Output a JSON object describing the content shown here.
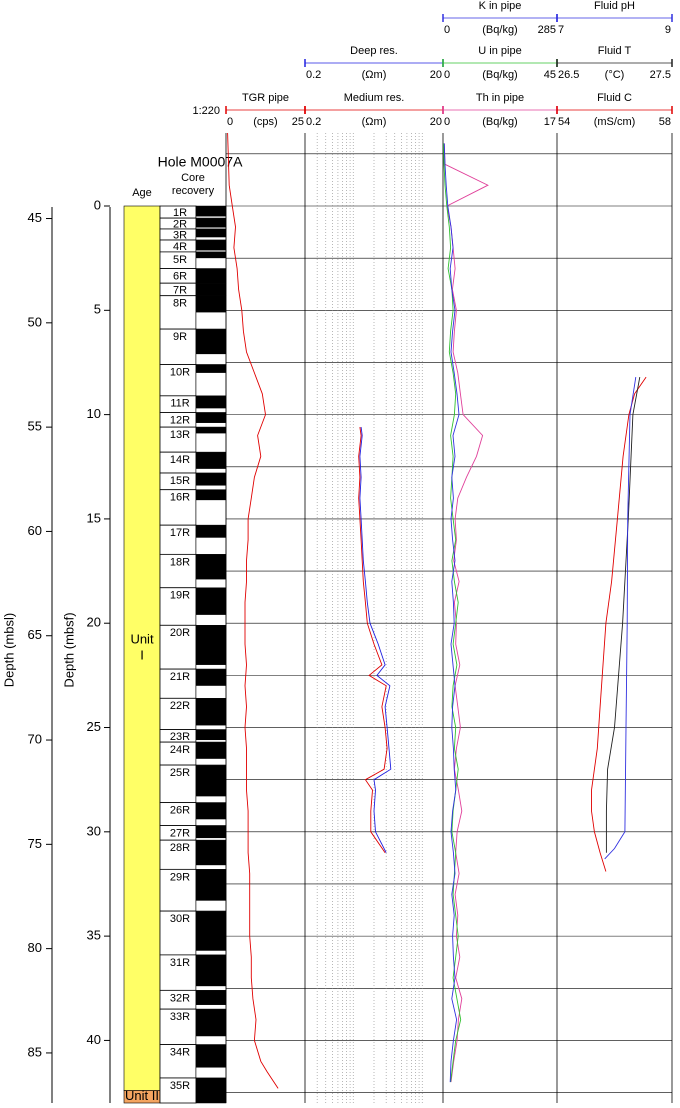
{
  "chart_data": {
    "type": "well-log",
    "title": "Hole M0007A",
    "scale_ratio": "1:220",
    "age_label": "Age",
    "core_label": [
      "Core",
      "recovery"
    ],
    "depth_mbsf": {
      "label": "Depth (mbsf)",
      "lim": [
        -3.5,
        43
      ],
      "ticks": [
        0,
        5,
        10,
        15,
        20,
        25,
        30,
        35,
        40
      ],
      "grid": [
        -2.5,
        0,
        2.5,
        5,
        7.5,
        10,
        12.5,
        15,
        17.5,
        20,
        22.5,
        25,
        27.5,
        30,
        32.5,
        35,
        37.5,
        40,
        42.5
      ]
    },
    "depth_mbsl": {
      "label": "Depth (mbsl)",
      "lim": [
        40.9,
        87.4
      ],
      "ticks": [
        45,
        50,
        55,
        60,
        65,
        70,
        75,
        80,
        85
      ]
    },
    "units": [
      {
        "label": [
          "Unit",
          "I"
        ],
        "top": 0,
        "bottom": 42.4,
        "color": "#ffff66"
      },
      {
        "label": [
          "Unit II"
        ],
        "top": 42.4,
        "bottom": 43,
        "color": "#f4a460"
      }
    ],
    "cores": [
      {
        "label": "1R",
        "top": 0,
        "bottom": 0.58,
        "recovered": 0.5
      },
      {
        "label": "2R",
        "top": 0.58,
        "bottom": 1.1,
        "recovered": 0.45
      },
      {
        "label": "3R",
        "top": 1.1,
        "bottom": 1.63,
        "recovered": 0.4
      },
      {
        "label": "4R",
        "top": 1.63,
        "bottom": 2.2,
        "recovered": 0.5
      },
      {
        "label": "5R",
        "top": 2.2,
        "bottom": 3.0,
        "recovered": 0.3
      },
      {
        "label": "6R",
        "top": 3.0,
        "bottom": 3.7,
        "recovered": 0.7
      },
      {
        "label": "7R",
        "top": 3.7,
        "bottom": 4.3,
        "recovered": 0.6
      },
      {
        "label": "8R",
        "top": 4.3,
        "bottom": 5.9,
        "recovered": 0.8
      },
      {
        "label": "9R",
        "top": 5.9,
        "bottom": 7.6,
        "recovered": 1.2
      },
      {
        "label": "10R",
        "top": 7.6,
        "bottom": 9.1,
        "recovered": 0.4
      },
      {
        "label": "11R",
        "top": 9.1,
        "bottom": 9.9,
        "recovered": 0.6
      },
      {
        "label": "12R",
        "top": 9.9,
        "bottom": 10.6,
        "recovered": 0.5
      },
      {
        "label": "13R",
        "top": 10.6,
        "bottom": 11.8,
        "recovered": 0.3
      },
      {
        "label": "14R",
        "top": 11.8,
        "bottom": 12.8,
        "recovered": 0.8
      },
      {
        "label": "15R",
        "top": 12.8,
        "bottom": 13.6,
        "recovered": 0.6
      },
      {
        "label": "16R",
        "top": 13.6,
        "bottom": 15.3,
        "recovered": 0.5
      },
      {
        "label": "17R",
        "top": 15.3,
        "bottom": 16.7,
        "recovered": 0.6
      },
      {
        "label": "18R",
        "top": 16.7,
        "bottom": 18.3,
        "recovered": 1.2
      },
      {
        "label": "19R",
        "top": 18.3,
        "bottom": 20.1,
        "recovered": 1.3
      },
      {
        "label": "20R",
        "top": 20.1,
        "bottom": 22.2,
        "recovered": 1.9
      },
      {
        "label": "21R",
        "top": 22.2,
        "bottom": 23.6,
        "recovered": 0.8
      },
      {
        "label": "22R",
        "top": 23.6,
        "bottom": 25.1,
        "recovered": 1.3
      },
      {
        "label": "23R",
        "top": 25.1,
        "bottom": 25.7,
        "recovered": 0.5
      },
      {
        "label": "24R",
        "top": 25.7,
        "bottom": 26.8,
        "recovered": 0.8
      },
      {
        "label": "25R",
        "top": 26.8,
        "bottom": 28.6,
        "recovered": 1.5
      },
      {
        "label": "26R",
        "top": 28.6,
        "bottom": 29.7,
        "recovered": 0.8
      },
      {
        "label": "27R",
        "top": 29.7,
        "bottom": 30.4,
        "recovered": 0.6
      },
      {
        "label": "28R",
        "top": 30.4,
        "bottom": 31.8,
        "recovered": 1.2
      },
      {
        "label": "29R",
        "top": 31.8,
        "bottom": 33.8,
        "recovered": 1.5
      },
      {
        "label": "30R",
        "top": 33.8,
        "bottom": 35.9,
        "recovered": 1.9
      },
      {
        "label": "31R",
        "top": 35.9,
        "bottom": 37.6,
        "recovered": 1.5
      },
      {
        "label": "32R",
        "top": 37.6,
        "bottom": 38.5,
        "recovered": 0.7
      },
      {
        "label": "33R",
        "top": 38.5,
        "bottom": 40.2,
        "recovered": 1.3
      },
      {
        "label": "34R",
        "top": 40.2,
        "bottom": 41.8,
        "recovered": 1.1
      },
      {
        "label": "35R",
        "top": 41.8,
        "bottom": 43,
        "recovered": 1.2
      }
    ],
    "tracks": [
      {
        "scales": [
          {
            "name": "TGR pipe",
            "unit": "(cps)",
            "lim": [
              0,
              25
            ],
            "color": "#e00000",
            "depth": [
              -3.5,
              -1,
              0,
              1,
              2,
              3,
              4,
              5,
              6,
              7,
              8,
              9,
              10,
              11,
              12,
              13,
              14,
              15,
              16,
              17,
              18,
              19,
              20,
              21,
              22,
              23,
              24,
              25,
              26,
              27,
              28,
              29,
              30,
              31,
              32,
              33,
              34,
              35,
              36,
              37,
              38,
              39,
              40,
              41,
              41.5,
              42.3
            ],
            "values": [
              0.5,
              1,
              2,
              3,
              2.5,
              3.5,
              4,
              5,
              5.5,
              6.5,
              9,
              11.5,
              12.5,
              10,
              11,
              9,
              8,
              7,
              7,
              6.5,
              6.5,
              6,
              6,
              6,
              6.5,
              6,
              6.5,
              6,
              6.5,
              6.5,
              6.5,
              7,
              7,
              7,
              7.5,
              7.5,
              7.5,
              7.5,
              8,
              8,
              8.5,
              9.5,
              9,
              11,
              13,
              16.5
            ]
          }
        ]
      },
      {
        "log": true,
        "grid": [
          0.3,
          0.4,
          0.5,
          0.6,
          0.7,
          0.8,
          0.9,
          1,
          2,
          3,
          4,
          5,
          6,
          7,
          8,
          9,
          10
        ],
        "scales": [
          {
            "name": "Medium res.",
            "unit": "(Ωm)",
            "lim": [
              0.2,
              20
            ],
            "color": "#e00000",
            "depth": [
              10.6,
              11,
              12,
              13,
              14,
              15,
              16,
              17,
              18,
              19,
              20,
              21,
              22,
              22.5,
              23,
              24,
              25,
              26,
              27,
              27.5,
              28,
              29,
              30,
              31
            ],
            "values": [
              1.25,
              1.3,
              1.2,
              1.25,
              1.2,
              1.25,
              1.3,
              1.35,
              1.4,
              1.5,
              1.6,
              2.0,
              2.6,
              1.7,
              3.0,
              2.6,
              2.9,
              3.1,
              2.8,
              1.5,
              1.9,
              1.8,
              1.8,
              2.9
            ]
          },
          {
            "name": "Deep res.",
            "unit": "(Ωm)",
            "lim": [
              0.2,
              20
            ],
            "color": "#2020e0",
            "depth": [
              10.6,
              11,
              12,
              13,
              14,
              15,
              16,
              17,
              18,
              19,
              20,
              21,
              22,
              22.5,
              23,
              24,
              25,
              26,
              27,
              27.5,
              28,
              29,
              30,
              31
            ],
            "values": [
              1.3,
              1.35,
              1.25,
              1.3,
              1.25,
              1.3,
              1.35,
              1.4,
              1.5,
              1.6,
              1.75,
              2.3,
              2.9,
              2.2,
              3.4,
              2.9,
              3.1,
              3.3,
              3.5,
              2.0,
              2.1,
              2.0,
              2.1,
              3.0
            ]
          }
        ]
      },
      {
        "scales": [
          {
            "name": "Th in pipe",
            "unit": "(Bq/kg)",
            "lim": [
              0,
              17
            ],
            "color": "#e0409a",
            "depth": [
              -3,
              -2,
              -1,
              0,
              1,
              2,
              3,
              4,
              5,
              6,
              7,
              8,
              9,
              10,
              11,
              12,
              13,
              14,
              15,
              16,
              17,
              18,
              19,
              20,
              21,
              22,
              23,
              24,
              25,
              26,
              27,
              28,
              29,
              30,
              31,
              32,
              33,
              34,
              35,
              36,
              37,
              38,
              39,
              40,
              41,
              42
            ],
            "values": [
              0.2,
              0.3,
              6.7,
              0.6,
              1.2,
              1.5,
              1.8,
              1.4,
              2.0,
              1.7,
              1.5,
              2.2,
              2.6,
              3.0,
              5.9,
              5.0,
              3.5,
              2.2,
              1.8,
              2.0,
              1.6,
              2.4,
              1.7,
              2.0,
              1.9,
              2.5,
              1.8,
              2.2,
              2.6,
              2.0,
              1.7,
              2.3,
              2.8,
              2.1,
              1.9,
              2.4,
              1.8,
              2.2,
              2.0,
              2.5,
              1.9,
              2.8,
              2.3,
              2.1,
              1.6,
              1.2
            ]
          },
          {
            "name": "U in pipe",
            "unit": "(Bq/kg)",
            "lim": [
              0,
              45
            ],
            "color": "#30c030",
            "depth": [
              -3,
              -2,
              -1,
              0,
              1,
              2,
              3,
              4,
              5,
              6,
              7,
              8,
              9,
              10,
              11,
              12,
              13,
              14,
              15,
              16,
              17,
              18,
              19,
              20,
              21,
              22,
              23,
              24,
              25,
              26,
              27,
              28,
              29,
              30,
              31,
              32,
              33,
              34,
              35,
              36,
              37,
              38,
              39,
              40,
              41,
              42
            ],
            "values": [
              0.2,
              0.4,
              0.8,
              1.5,
              2.5,
              3,
              2,
              3.5,
              4,
              3,
              2.5,
              4,
              5,
              4.5,
              3,
              4,
              3.5,
              3,
              4,
              5,
              3.5,
              4.5,
              6,
              5,
              4,
              5.5,
              4,
              3.5,
              5,
              4.5,
              6,
              5,
              4,
              3.5,
              5,
              4.5,
              4,
              5,
              6,
              5,
              4,
              5.5,
              7,
              5,
              4,
              3
            ]
          },
          {
            "name": "K in pipe",
            "unit": "(Bq/kg)",
            "lim": [
              0,
              285
            ],
            "color": "#3030e0",
            "depth": [
              -3,
              -2,
              -1,
              0,
              1,
              2,
              3,
              4,
              5,
              6,
              7,
              8,
              9,
              10,
              11,
              12,
              13,
              14,
              15,
              16,
              17,
              18,
              19,
              20,
              21,
              22,
              23,
              24,
              25,
              26,
              27,
              28,
              29,
              30,
              31,
              32,
              33,
              34,
              35,
              36,
              37,
              38,
              39,
              40,
              41,
              42
            ],
            "values": [
              3,
              5,
              8,
              12,
              20,
              25,
              18,
              22,
              30,
              24,
              20,
              28,
              35,
              40,
              25,
              30,
              22,
              26,
              20,
              24,
              30,
              22,
              26,
              28,
              20,
              25,
              30,
              24,
              22,
              26,
              28,
              32,
              24,
              20,
              26,
              30,
              22,
              28,
              24,
              26,
              30,
              22,
              34,
              26,
              20,
              18
            ]
          }
        ]
      },
      {
        "scales": [
          {
            "name": "Fluid C",
            "unit": "(mS/cm)",
            "lim": [
              54,
              58
            ],
            "color": "#e00000",
            "depth": [
              8.2,
              9,
              10,
              12,
              15,
              18,
              20,
              22,
              24,
              26,
              27,
              28,
              29,
              30,
              31,
              31.9
            ],
            "values": [
              57.1,
              56.7,
              56.5,
              56.3,
              56.1,
              55.9,
              55.7,
              55.6,
              55.5,
              55.4,
              55.3,
              55.2,
              55.2,
              55.3,
              55.5,
              55.7
            ]
          },
          {
            "name": "Fluid T",
            "unit": "(°C)",
            "lim": [
              26.5,
              27.5
            ],
            "color": "#202020",
            "depth": [
              8.2,
              10,
              15,
              20,
              25,
              27,
              29,
              31
            ],
            "values": [
              27.22,
              27.16,
              27.12,
              27.07,
              27.0,
              26.94,
              26.93,
              26.93
            ]
          },
          {
            "name": "Fluid pH",
            "unit": "",
            "lim": [
              7,
              9
            ],
            "color": "#3030e0",
            "depth": [
              8.2,
              10,
              15,
              20,
              25,
              30,
              30.8,
              31.3
            ],
            "values": [
              8.37,
              8.27,
              8.23,
              8.22,
              8.2,
              8.18,
              8.0,
              7.83
            ]
          }
        ]
      }
    ]
  }
}
